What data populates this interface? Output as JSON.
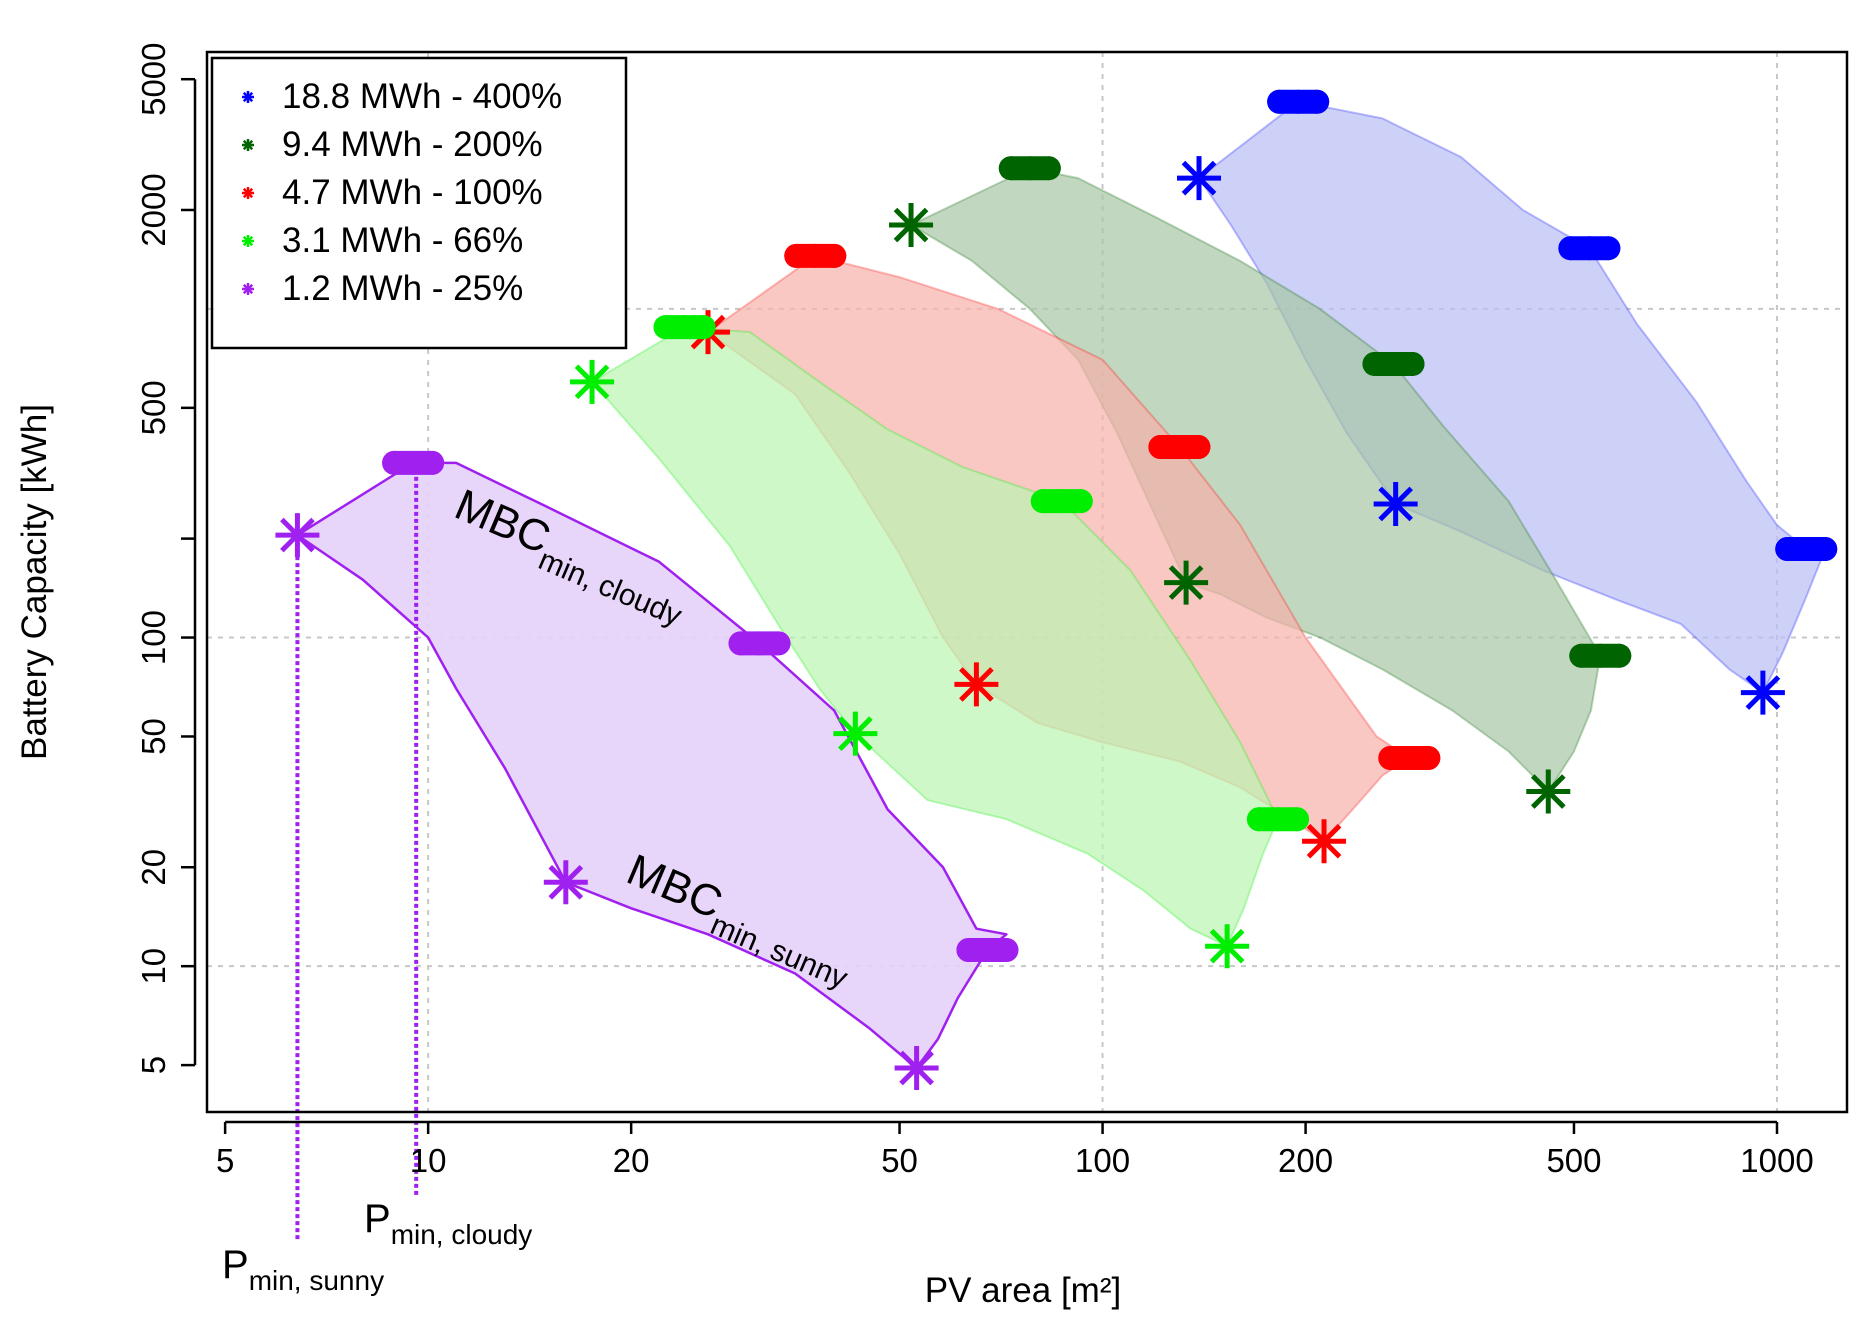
{
  "chart_data": {
    "type": "scatter",
    "title": "",
    "xlabel": "PV area [m²]",
    "ylabel": "Battery Capacity [kWh]",
    "xscale": "log",
    "yscale": "log",
    "xlim": [
      4.7,
      1270
    ],
    "ylim": [
      3.6,
      6050
    ],
    "x_ticks": [
      5,
      10,
      20,
      50,
      100,
      200,
      500,
      1000
    ],
    "y_ticks": [
      5,
      10,
      20,
      50,
      100,
      200,
      500,
      2000,
      5000
    ],
    "y_tick_labels": [
      "5",
      "10",
      "20",
      "50",
      "100",
      "",
      "500",
      "2000",
      "5000"
    ],
    "x_tick_labels": [
      "5",
      "10",
      "20",
      "50",
      "100",
      "200",
      "500",
      "1000"
    ],
    "gridlines_x": [
      10,
      100,
      1000
    ],
    "gridlines_y": [
      10,
      100,
      1000
    ],
    "grid": true,
    "legend_position": "top-left",
    "series": [
      {
        "name": "18.8 MWh - 400%",
        "color": "#0000ff",
        "fill": "#b8bdf5",
        "stars": [
          [
            139,
            2500
          ],
          [
            272,
            255
          ],
          [
            953,
            68
          ]
        ],
        "dots": [
          [
            195,
            4270
          ],
          [
            527,
            1530
          ],
          [
            1105,
            186
          ]
        ],
        "band": [
          [
            139,
            2500
          ],
          [
            195,
            4270
          ],
          [
            260,
            3800
          ],
          [
            340,
            2900
          ],
          [
            420,
            2000
          ],
          [
            527,
            1530
          ],
          [
            620,
            900
          ],
          [
            760,
            520
          ],
          [
            900,
            300
          ],
          [
            1000,
            220
          ],
          [
            1105,
            186
          ],
          [
            1180,
            186
          ],
          [
            1100,
            130
          ],
          [
            1020,
            90
          ],
          [
            953,
            68
          ],
          [
            850,
            80
          ],
          [
            720,
            110
          ],
          [
            580,
            130
          ],
          [
            450,
            160
          ],
          [
            340,
            210
          ],
          [
            272,
            255
          ],
          [
            230,
            420
          ],
          [
            200,
            700
          ],
          [
            175,
            1200
          ],
          [
            155,
            1800
          ]
        ]
      },
      {
        "name": "9.4 MWh - 200%",
        "color": "#006400",
        "fill": "#a6c6a4",
        "stars": [
          [
            52,
            1800
          ],
          [
            133,
            147
          ],
          [
            458,
            34
          ]
        ],
        "dots": [
          [
            78,
            2680
          ],
          [
            270,
            680
          ],
          [
            547,
            88
          ]
        ],
        "band": [
          [
            52,
            1800
          ],
          [
            78,
            2680
          ],
          [
            92,
            2500
          ],
          [
            120,
            1900
          ],
          [
            160,
            1400
          ],
          [
            210,
            1000
          ],
          [
            270,
            680
          ],
          [
            320,
            440
          ],
          [
            400,
            260
          ],
          [
            470,
            150
          ],
          [
            547,
            88
          ],
          [
            530,
            60
          ],
          [
            500,
            45
          ],
          [
            458,
            34
          ],
          [
            400,
            45
          ],
          [
            330,
            60
          ],
          [
            260,
            80
          ],
          [
            210,
            100
          ],
          [
            175,
            115
          ],
          [
            150,
            135
          ],
          [
            133,
            147
          ],
          [
            118,
            250
          ],
          [
            105,
            420
          ],
          [
            92,
            700
          ],
          [
            78,
            1000
          ],
          [
            64,
            1400
          ]
        ]
      },
      {
        "name": "4.7 MWh - 100%",
        "color": "#ff0000",
        "fill": "#f6b0aa",
        "stars": [
          [
            26,
            850
          ],
          [
            65,
            72
          ],
          [
            213,
            24
          ]
        ],
        "dots": [
          [
            37.5,
            1450
          ],
          [
            130,
            380
          ],
          [
            285,
            43
          ]
        ],
        "band": [
          [
            26,
            850
          ],
          [
            37.5,
            1450
          ],
          [
            50,
            1250
          ],
          [
            70,
            1000
          ],
          [
            100,
            700
          ],
          [
            130,
            380
          ],
          [
            160,
            220
          ],
          [
            200,
            100
          ],
          [
            255,
            50
          ],
          [
            285,
            43
          ],
          [
            260,
            38
          ],
          [
            235,
            30
          ],
          [
            213,
            24
          ],
          [
            190,
            28
          ],
          [
            160,
            35
          ],
          [
            130,
            42
          ],
          [
            100,
            48
          ],
          [
            80,
            55
          ],
          [
            65,
            72
          ],
          [
            58,
            100
          ],
          [
            50,
            180
          ],
          [
            42,
            320
          ],
          [
            35,
            550
          ]
        ]
      },
      {
        "name": "3.1 MWh - 66%",
        "color": "#00ee00",
        "fill": "#baf5b0",
        "stars": [
          [
            17.5,
            600
          ],
          [
            43,
            51
          ],
          [
            153,
            11.5
          ]
        ],
        "dots": [
          [
            24,
            880
          ],
          [
            87,
            260
          ],
          [
            182,
            28
          ]
        ],
        "band": [
          [
            17.5,
            600
          ],
          [
            24,
            880
          ],
          [
            30,
            850
          ],
          [
            38,
            600
          ],
          [
            48,
            430
          ],
          [
            62,
            330
          ],
          [
            87,
            260
          ],
          [
            110,
            160
          ],
          [
            135,
            85
          ],
          [
            160,
            48
          ],
          [
            182,
            28
          ],
          [
            173,
            22
          ],
          [
            162,
            15
          ],
          [
            153,
            11.5
          ],
          [
            135,
            13
          ],
          [
            115,
            17
          ],
          [
            95,
            22
          ],
          [
            72,
            28
          ],
          [
            55,
            32
          ],
          [
            43,
            51
          ],
          [
            38,
            70
          ],
          [
            33,
            110
          ],
          [
            28,
            190
          ],
          [
            22,
            350
          ]
        ]
      },
      {
        "name": "1.2 MWh - 25%",
        "color": "#a020f0",
        "fill": "#e6d2fa",
        "stars": [
          [
            6.4,
            205
          ],
          [
            16,
            18
          ],
          [
            53,
            4.9
          ]
        ],
        "dots": [
          [
            9.5,
            340
          ],
          [
            31,
            96
          ],
          [
            67.5,
            11.2
          ]
        ],
        "band": [
          [
            6.4,
            205
          ],
          [
            9.5,
            340
          ],
          [
            11,
            340
          ],
          [
            15,
            250
          ],
          [
            22,
            170
          ],
          [
            31,
            96
          ],
          [
            40,
            60
          ],
          [
            48,
            30
          ],
          [
            58,
            20
          ],
          [
            65,
            13
          ],
          [
            72,
            12.5
          ],
          [
            67.5,
            11.2
          ],
          [
            61,
            8
          ],
          [
            57,
            6
          ],
          [
            53,
            4.9
          ],
          [
            45,
            6.5
          ],
          [
            35,
            9.5
          ],
          [
            26,
            12.5
          ],
          [
            20,
            15
          ],
          [
            16,
            18
          ],
          [
            13,
            40
          ],
          [
            11,
            70
          ],
          [
            10,
            100
          ],
          [
            8,
            150
          ]
        ]
      }
    ],
    "annotations": {
      "mbc_cloudy": {
        "main": "MBC",
        "sub": "min, cloudy"
      },
      "mbc_sunny": {
        "main": "MBC",
        "sub": "min, sunny"
      },
      "p_sunny": {
        "main": "P",
        "sub": "min, sunny",
        "x": 6.4
      },
      "p_cloudy": {
        "main": "P",
        "sub": "min, cloudy",
        "x": 9.6
      }
    }
  }
}
